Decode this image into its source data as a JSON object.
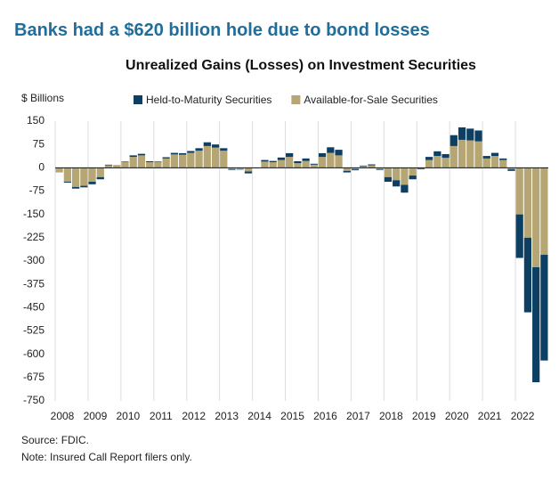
{
  "chart_data": {
    "type": "bar",
    "stacked": true,
    "headline": "Banks had a $620 billion hole due to bond losses",
    "title": "Unrealized Gains (Losses) on Investment Securities",
    "y_label": "$ Billions",
    "source": "Source: FDIC.",
    "note": "Note: Insured Call Report filers only.",
    "categories": [
      "2008",
      null,
      null,
      null,
      "2009",
      null,
      null,
      null,
      "2010",
      null,
      null,
      null,
      "2011",
      null,
      null,
      null,
      "2012",
      null,
      null,
      null,
      "2013",
      null,
      null,
      null,
      "2014",
      null,
      null,
      null,
      "2015",
      null,
      null,
      null,
      "2016",
      null,
      null,
      null,
      "2017",
      null,
      null,
      null,
      "2018",
      null,
      null,
      null,
      "2019",
      null,
      null,
      null,
      "2020",
      null,
      null,
      null,
      "2021",
      null,
      null,
      null,
      "2022",
      null,
      null,
      null
    ],
    "series": [
      {
        "name": "Available-for-Sale Securities",
        "color": "#b5a673",
        "values": [
          -15,
          -45,
          -62,
          -58,
          -45,
          -30,
          8,
          7,
          18,
          35,
          40,
          18,
          18,
          30,
          43,
          42,
          48,
          55,
          70,
          65,
          55,
          -5,
          -5,
          -12,
          -2,
          20,
          18,
          25,
          35,
          15,
          22,
          10,
          35,
          48,
          40,
          -10,
          -5,
          5,
          8,
          -5,
          -30,
          -40,
          -55,
          -25,
          -3,
          25,
          38,
          32,
          70,
          90,
          88,
          85,
          30,
          38,
          25,
          -5,
          -150,
          -225,
          -320,
          -280
        ]
      },
      {
        "name": "Held-to-Maturity Securities",
        "color": "#0d3f62",
        "values": [
          0,
          -3,
          -5,
          -5,
          -8,
          -7,
          2,
          1,
          2,
          5,
          5,
          3,
          2,
          4,
          5,
          5,
          6,
          8,
          12,
          10,
          8,
          -2,
          -1,
          -6,
          0,
          5,
          4,
          8,
          12,
          6,
          8,
          3,
          12,
          18,
          18,
          -5,
          -3,
          2,
          3,
          -2,
          -15,
          -20,
          -25,
          -12,
          -2,
          10,
          15,
          12,
          35,
          40,
          38,
          35,
          8,
          10,
          5,
          -5,
          -140,
          -240,
          -370,
          -340
        ]
      }
    ],
    "ylim": [
      -750,
      150
    ],
    "yticks": [
      150,
      75,
      0,
      -75,
      -150,
      -225,
      -300,
      -375,
      -450,
      -525,
      -600,
      -675,
      -750
    ],
    "grid": true
  }
}
